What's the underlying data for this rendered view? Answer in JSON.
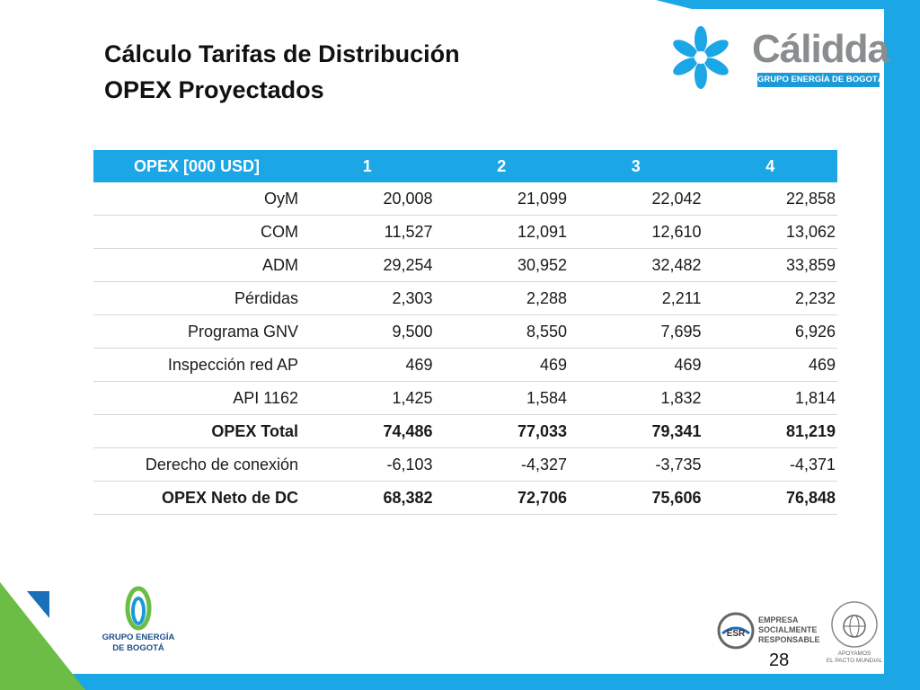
{
  "slide": {
    "title_line1": "Cálculo Tarifas de Distribución",
    "title_line2": "OPEX Proyectados",
    "page_number": "28"
  },
  "brand": {
    "logo_name": "Cálidda",
    "logo_tagline": "GRUPO ENERGÍA DE BOGOTÁ",
    "footer_left_line1": "GRUPO ENERGÍA",
    "footer_left_line2": "DE BOGOTÁ",
    "esr_line1": "EMPRESA",
    "esr_line2": "SOCIALMENTE",
    "esr_line3": "RESPONSABLE",
    "gc_line1": "APOYAMOS",
    "gc_line2": "EL PACTO MUNDIAL",
    "accent_color": "#1ba6e5",
    "green_color": "#6cbd45",
    "icons": [
      "calidda-flower-icon",
      "geb-swirl-icon",
      "esr-badge-icon",
      "global-compact-seal-icon"
    ]
  },
  "table": {
    "headers": [
      "OPEX [000 USD]",
      "1",
      "2",
      "3",
      "4"
    ],
    "rows": [
      {
        "label": "OyM",
        "values": [
          "20,008",
          "21,099",
          "22,042",
          "22,858"
        ],
        "bold": false
      },
      {
        "label": "COM",
        "values": [
          "11,527",
          "12,091",
          "12,610",
          "13,062"
        ],
        "bold": false
      },
      {
        "label": "ADM",
        "values": [
          "29,254",
          "30,952",
          "32,482",
          "33,859"
        ],
        "bold": false
      },
      {
        "label": "Pérdidas",
        "values": [
          "2,303",
          "2,288",
          "2,211",
          "2,232"
        ],
        "bold": false
      },
      {
        "label": "Programa GNV",
        "values": [
          "9,500",
          "8,550",
          "7,695",
          "6,926"
        ],
        "bold": false
      },
      {
        "label": "Inspección red AP",
        "values": [
          "469",
          "469",
          "469",
          "469"
        ],
        "bold": false
      },
      {
        "label": "API 1162",
        "values": [
          "1,425",
          "1,584",
          "1,832",
          "1,814"
        ],
        "bold": false
      },
      {
        "label": "OPEX Total",
        "values": [
          "74,486",
          "77,033",
          "79,341",
          "81,219"
        ],
        "bold": true
      },
      {
        "label": "Derecho de conexión",
        "values": [
          "-6,103",
          "-4,327",
          "-3,735",
          "-4,371"
        ],
        "bold": false
      },
      {
        "label": "OPEX Neto de DC",
        "values": [
          "68,382",
          "72,706",
          "75,606",
          "76,848"
        ],
        "bold": true
      }
    ]
  }
}
